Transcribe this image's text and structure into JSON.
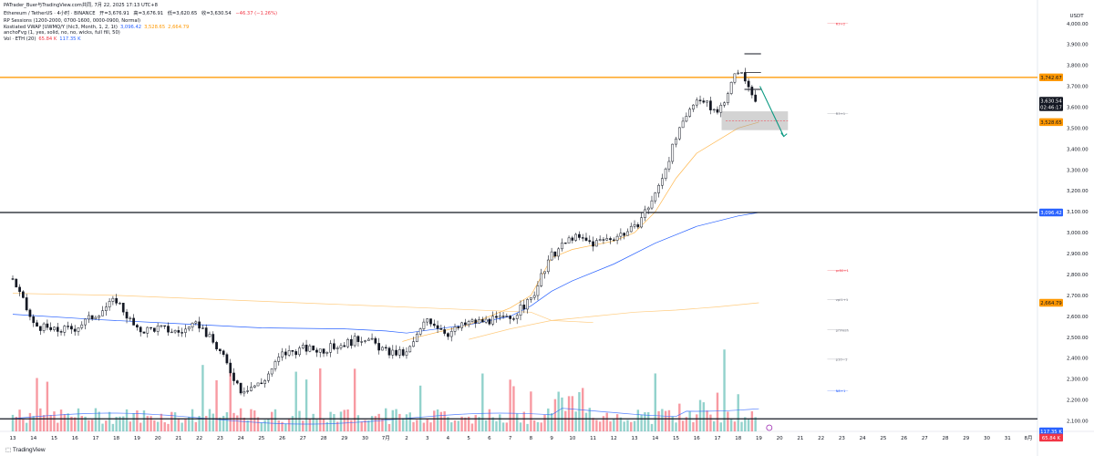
{
  "header": {
    "published_by": "PATrader_Buer与TradingView.com共同, 7月 22, 2025 17:13 UTC+8",
    "symbol_line": "Ethereum / TetherUS · 4小时 · BINANCE",
    "ohlc": {
      "open": "开=3,676.91",
      "high": "高=3,676.91",
      "low": "低=3,620.65",
      "close": "收=3,630.54",
      "change": "−46.37 (−1.26%)"
    },
    "indicators": [
      {
        "label": "RP Sessions (1200-2000, 0700-1600, 0000-0900, Normal)",
        "values": []
      },
      {
        "label": "Kostiated VWAP [UWMQ/Y (hlc3, Month, 1, 2, 1t)",
        "values": [
          {
            "text": "3,096.42",
            "color": "#2962ff"
          },
          {
            "text": "3,528.65",
            "color": "#ff9800"
          },
          {
            "text": "2,664.79",
            "color": "#ff9800"
          }
        ]
      },
      {
        "label": "anchoFvg (1, yes, solid, no, no, wicks, full fill, 50)",
        "values": []
      },
      {
        "label": "Vol · ETH (20)",
        "values": [
          {
            "text": "65.84 K",
            "color": "#f23645"
          },
          {
            "text": "117.35 K",
            "color": "#2962ff"
          }
        ]
      }
    ]
  },
  "price_axis": {
    "currency": "USDT",
    "ticks": [
      "4,000.00",
      "3,900.00",
      "3,800.00",
      "3,700.00",
      "3,600.00",
      "3,500.00",
      "3,400.00",
      "3,300.00",
      "3,200.00",
      "3,100.00",
      "3,000.00",
      "2,900.00",
      "2,800.00",
      "2,700.00",
      "2,600.00",
      "2,500.00",
      "2,400.00",
      "2,300.00",
      "2,200.00",
      "2,100.00"
    ],
    "tick_values": [
      4000,
      3900,
      3800,
      3700,
      3600,
      3500,
      3400,
      3300,
      3200,
      3100,
      3000,
      2900,
      2800,
      2700,
      2600,
      2500,
      2400,
      2300,
      2200,
      2100
    ],
    "badges": [
      {
        "text": "3,742.67",
        "value": 3742.67,
        "bg": "#ff9800",
        "fg": "#131722"
      },
      {
        "text": "3,630.54",
        "value": 3630.54,
        "bg": "#131722",
        "fg": "#ffffff"
      },
      {
        "text": "02:46:17",
        "value": 3600,
        "bg": "#131722",
        "fg": "#ffffff"
      },
      {
        "text": "3,528.65",
        "value": 3528.65,
        "bg": "#ff9800",
        "fg": "#131722"
      },
      {
        "text": "3,096.42",
        "value": 3096.42,
        "bg": "#2962ff",
        "fg": "#ffffff"
      },
      {
        "text": "2,664.79",
        "value": 2664.79,
        "bg": "#ff9800",
        "fg": "#131722"
      },
      {
        "text": "117.35 K",
        "value": 2050,
        "bg": "#2962ff",
        "fg": "#ffffff"
      },
      {
        "text": "65.84 K",
        "value": 2020,
        "bg": "#f23645",
        "fg": "#ffffff"
      }
    ]
  },
  "time_axis": {
    "labels": [
      "13",
      "14",
      "15",
      "16",
      "17",
      "18",
      "19",
      "20",
      "21",
      "22",
      "23",
      "24",
      "25",
      "26",
      "27",
      "28",
      "29",
      "30",
      "7月",
      "2",
      "3",
      "4",
      "5",
      "6",
      "7",
      "8",
      "9",
      "10",
      "11",
      "12",
      "13",
      "14",
      "15",
      "16",
      "17",
      "18",
      "19",
      "20",
      "21",
      "22",
      "23",
      "24",
      "25",
      "26",
      "27",
      "28",
      "29",
      "30",
      "31",
      "8月"
    ]
  },
  "chart_data": {
    "type": "candlestick",
    "symbol": "ETHUSDT",
    "exchange": "BINANCE",
    "interval": "4h",
    "x_range": [
      "6月13日",
      "8月1日"
    ],
    "ylim": [
      2050,
      4060
    ],
    "price_path": [
      [
        0,
        2780
      ],
      [
        1,
        2560
      ],
      [
        2,
        2530
      ],
      [
        3,
        2545
      ],
      [
        4,
        2610
      ],
      [
        5,
        2680
      ],
      [
        6,
        2530
      ],
      [
        7,
        2545
      ],
      [
        8,
        2525
      ],
      [
        9,
        2560
      ],
      [
        10,
        2430
      ],
      [
        11,
        2250
      ],
      [
        12,
        2280
      ],
      [
        13,
        2420
      ],
      [
        14,
        2445
      ],
      [
        15,
        2440
      ],
      [
        16,
        2470
      ],
      [
        17,
        2500
      ],
      [
        18,
        2430
      ],
      [
        19,
        2420
      ],
      [
        20,
        2590
      ],
      [
        21,
        2520
      ],
      [
        22,
        2570
      ],
      [
        23,
        2580
      ],
      [
        24,
        2590
      ],
      [
        25,
        2680
      ],
      [
        26,
        2890
      ],
      [
        27,
        2980
      ],
      [
        28,
        2950
      ],
      [
        29,
        2980
      ],
      [
        30,
        3020
      ],
      [
        31,
        3180
      ],
      [
        32,
        3450
      ],
      [
        33,
        3650
      ],
      [
        34,
        3570
      ],
      [
        35,
        3780
      ],
      [
        36,
        3620
      ]
    ],
    "horizontal_lines": [
      {
        "price": 3742.67,
        "color": "#ff9800"
      },
      {
        "price": 3096.42,
        "color": "#131722"
      },
      {
        "price": 2110,
        "color": "#131722"
      }
    ],
    "vwap": {
      "mid": [
        [
          0,
          2610
        ],
        [
          4,
          2585
        ],
        [
          8,
          2565
        ],
        [
          12,
          2545
        ],
        [
          16,
          2540
        ],
        [
          18,
          2530
        ],
        [
          19,
          2520
        ],
        [
          22,
          2560
        ],
        [
          24,
          2600
        ],
        [
          25,
          2650
        ],
        [
          26,
          2720
        ],
        [
          27,
          2770
        ],
        [
          29,
          2850
        ],
        [
          31,
          2950
        ],
        [
          33,
          3030
        ],
        [
          35,
          3080
        ],
        [
          36,
          3096.42
        ]
      ],
      "upper": [
        [
          18.8,
          2480
        ],
        [
          19.5,
          2500
        ],
        [
          22,
          2560
        ],
        [
          24,
          2640
        ],
        [
          25,
          2700
        ],
        [
          26,
          2880
        ],
        [
          27,
          2920
        ],
        [
          29,
          2960
        ],
        [
          30,
          3000
        ],
        [
          31,
          3100
        ],
        [
          32,
          3260
        ],
        [
          33,
          3380
        ],
        [
          35,
          3500
        ],
        [
          36,
          3528.65
        ]
      ],
      "lower": [
        [
          22,
          2490
        ],
        [
          24,
          2540
        ],
        [
          26,
          2580
        ],
        [
          28,
          2600
        ],
        [
          30,
          2620
        ],
        [
          32,
          2630
        ],
        [
          34,
          2645
        ],
        [
          36,
          2664.79
        ]
      ]
    },
    "session_line": [
      [
        0,
        2710
      ],
      [
        5,
        2700
      ],
      [
        10,
        2680
      ],
      [
        15,
        2660
      ],
      [
        20,
        2640
      ],
      [
        25,
        2620
      ],
      [
        26,
        2580
      ],
      [
        28,
        2570
      ]
    ],
    "level_labels": [
      {
        "text": "R3+2",
        "price": 4000,
        "color": "#f23645"
      },
      {
        "text": "R3+1",
        "price": 3570,
        "color": "#787b86"
      },
      {
        "text": "pr80+1",
        "price": 2820,
        "color": "#f23645"
      },
      {
        "text": "vpl1+1",
        "price": 2680,
        "color": "#787b86"
      },
      {
        "text": "prVwah",
        "price": 2535,
        "color": "#787b86"
      },
      {
        "text": "p10−1",
        "price": 2395,
        "color": "#787b86"
      },
      {
        "text": "N8+1",
        "price": 2245,
        "color": "#2962ff"
      }
    ],
    "zone": {
      "price_top": 3580,
      "price_bottom": 3490
    },
    "volume": {
      "last": "65.84 K",
      "ma20": "117.35 K"
    }
  }
}
